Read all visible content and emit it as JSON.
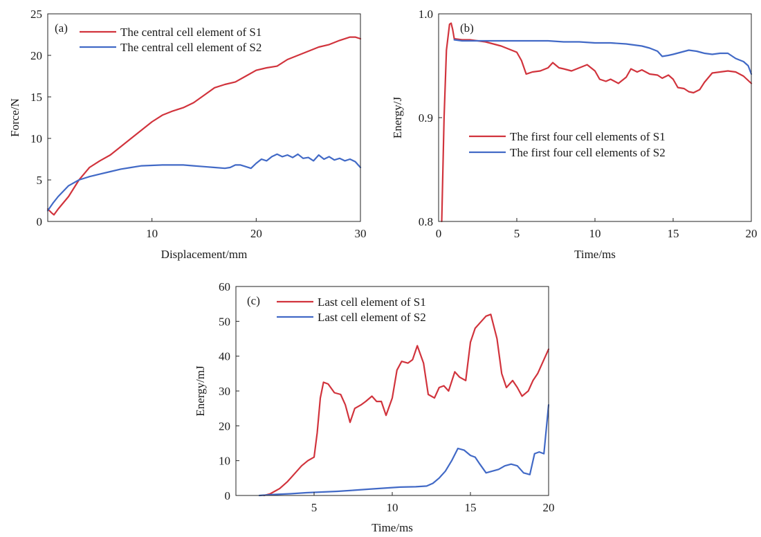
{
  "colors": {
    "s1": "#d1333c",
    "s2": "#4169c6"
  },
  "chart_data": [
    {
      "panel": "(a)",
      "type": "line",
      "xlabel": "Displacement/mm",
      "ylabel": "Force/N",
      "xlim": [
        0,
        30
      ],
      "ylim": [
        0,
        25
      ],
      "xticks": [
        10,
        20,
        30
      ],
      "yticks": [
        0,
        5,
        10,
        15,
        20,
        25
      ],
      "legend_position": "top-left",
      "series": [
        {
          "name": "The central cell element of S1",
          "color": "#d1333c",
          "x": [
            0,
            0.4,
            0.6,
            1,
            2,
            3,
            4,
            5,
            6,
            7,
            8,
            9,
            10,
            11,
            12,
            13,
            14,
            15,
            16,
            17,
            18,
            19,
            20,
            21,
            22,
            23,
            24,
            25,
            26,
            27,
            28,
            29,
            29.5,
            30
          ],
          "y": [
            1.5,
            1.0,
            0.8,
            1.5,
            3.0,
            5.0,
            6.5,
            7.3,
            8.0,
            9.0,
            10.0,
            11.0,
            12.0,
            12.8,
            13.3,
            13.7,
            14.3,
            15.2,
            16.1,
            16.5,
            16.8,
            17.5,
            18.2,
            18.5,
            18.7,
            19.5,
            20.0,
            20.5,
            21.0,
            21.3,
            21.8,
            22.2,
            22.2,
            22.0
          ]
        },
        {
          "name": "The central cell element of S2",
          "color": "#4169c6",
          "x": [
            0,
            0.5,
            1,
            2,
            3,
            4,
            5,
            6,
            7,
            8,
            9,
            10,
            11,
            12,
            13,
            14,
            15,
            16,
            17,
            17.5,
            18,
            18.5,
            19,
            19.5,
            20,
            20.5,
            21,
            21.5,
            22,
            22.5,
            23,
            23.5,
            24,
            24.5,
            25,
            25.5,
            26,
            26.5,
            27,
            27.5,
            28,
            28.5,
            29,
            29.5,
            30
          ],
          "y": [
            1.3,
            2.2,
            3.0,
            4.3,
            5.0,
            5.4,
            5.7,
            6.0,
            6.3,
            6.5,
            6.7,
            6.75,
            6.8,
            6.8,
            6.8,
            6.7,
            6.6,
            6.5,
            6.4,
            6.5,
            6.8,
            6.8,
            6.6,
            6.4,
            7.0,
            7.5,
            7.3,
            7.8,
            8.1,
            7.8,
            8.0,
            7.7,
            8.1,
            7.6,
            7.7,
            7.3,
            8.0,
            7.5,
            7.8,
            7.4,
            7.6,
            7.3,
            7.5,
            7.2,
            6.5
          ]
        }
      ]
    },
    {
      "panel": "(b)",
      "type": "line",
      "xlabel": "Time/ms",
      "ylabel": "Energy/J",
      "xlim": [
        0,
        20
      ],
      "ylim": [
        0.8,
        1.0
      ],
      "xticks": [
        0,
        5,
        10,
        15,
        20
      ],
      "yticks": [
        0.8,
        0.9,
        1.0
      ],
      "legend_position": "center-left",
      "series": [
        {
          "name": "The first four cell elements of S1",
          "color": "#d1333c",
          "x": [
            0.2,
            0.35,
            0.5,
            0.7,
            0.8,
            0.9,
            1.0,
            1.5,
            2,
            2.5,
            3,
            3.5,
            4,
            4.5,
            5,
            5.3,
            5.6,
            6,
            6.5,
            7,
            7.3,
            7.7,
            8,
            8.5,
            9,
            9.5,
            10,
            10.3,
            10.7,
            11,
            11.5,
            12,
            12.3,
            12.7,
            13,
            13.5,
            14,
            14.3,
            14.7,
            15,
            15.3,
            15.7,
            16,
            16.3,
            16.7,
            17,
            17.5,
            18,
            18.5,
            19,
            19.5,
            20
          ],
          "y": [
            0.8,
            0.9,
            0.965,
            0.99,
            0.991,
            0.985,
            0.976,
            0.975,
            0.975,
            0.974,
            0.973,
            0.971,
            0.969,
            0.966,
            0.963,
            0.955,
            0.942,
            0.944,
            0.945,
            0.948,
            0.953,
            0.948,
            0.947,
            0.945,
            0.948,
            0.951,
            0.945,
            0.937,
            0.935,
            0.937,
            0.933,
            0.939,
            0.947,
            0.944,
            0.946,
            0.942,
            0.941,
            0.938,
            0.941,
            0.937,
            0.929,
            0.928,
            0.925,
            0.924,
            0.927,
            0.934,
            0.943,
            0.944,
            0.945,
            0.944,
            0.94,
            0.933
          ]
        },
        {
          "name": "The first four cell elements of S2",
          "color": "#4169c6",
          "x": [
            1.0,
            1.5,
            2,
            3,
            4,
            5,
            6,
            7,
            8,
            9,
            10,
            11,
            12,
            12.5,
            13,
            13.5,
            14,
            14.3,
            14.7,
            15,
            15.5,
            16,
            16.5,
            17,
            17.5,
            18,
            18.5,
            19,
            19.5,
            19.8,
            20
          ],
          "y": [
            0.975,
            0.974,
            0.974,
            0.974,
            0.974,
            0.974,
            0.974,
            0.974,
            0.973,
            0.973,
            0.972,
            0.972,
            0.971,
            0.97,
            0.969,
            0.967,
            0.964,
            0.959,
            0.96,
            0.961,
            0.963,
            0.965,
            0.964,
            0.962,
            0.961,
            0.962,
            0.962,
            0.957,
            0.954,
            0.95,
            0.942
          ]
        }
      ]
    },
    {
      "panel": "(c)",
      "type": "line",
      "xlabel": "Time/ms",
      "ylabel": "Energy/mJ",
      "xlim": [
        0,
        20
      ],
      "ylim": [
        0,
        60
      ],
      "xticks": [
        5,
        10,
        15,
        20
      ],
      "yticks": [
        0,
        10,
        20,
        30,
        40,
        50,
        60
      ],
      "legend_position": "top-left",
      "series": [
        {
          "name": "Last cell element of S1",
          "color": "#d1333c",
          "x": [
            1.8,
            2.2,
            2.8,
            3.3,
            3.8,
            4.2,
            4.6,
            5.0,
            5.2,
            5.4,
            5.6,
            5.9,
            6.3,
            6.7,
            7.0,
            7.3,
            7.6,
            8.0,
            8.3,
            8.7,
            9.0,
            9.3,
            9.6,
            10.0,
            10.3,
            10.6,
            11.0,
            11.3,
            11.6,
            12.0,
            12.3,
            12.7,
            13.0,
            13.3,
            13.6,
            14.0,
            14.3,
            14.7,
            15.0,
            15.3,
            15.7,
            16.0,
            16.3,
            16.7,
            17.0,
            17.3,
            17.7,
            18.0,
            18.3,
            18.7,
            19.0,
            19.3,
            19.7,
            20.0
          ],
          "y": [
            0,
            0.5,
            2,
            4,
            6.5,
            8.5,
            10,
            11,
            18,
            28,
            32.5,
            32,
            29.5,
            29,
            26,
            21,
            25,
            26,
            27,
            28.5,
            27,
            27,
            23,
            28,
            36,
            38.5,
            38,
            39,
            43,
            38,
            29,
            28,
            31,
            31.5,
            30,
            35.5,
            34,
            33,
            44,
            48,
            50,
            51.5,
            52,
            45,
            35,
            31,
            33,
            31,
            28.5,
            30,
            33,
            35,
            39,
            42
          ]
        },
        {
          "name": "Last cell element of S2",
          "color": "#4169c6",
          "x": [
            1.5,
            2.5,
            3.5,
            4.5,
            5.5,
            6.5,
            7.5,
            8.5,
            9.5,
            10.5,
            11.5,
            12.2,
            12.6,
            13.0,
            13.4,
            13.8,
            14.2,
            14.6,
            15.0,
            15.3,
            15.6,
            16.0,
            16.4,
            16.8,
            17.2,
            17.6,
            18.0,
            18.4,
            18.8,
            19.1,
            19.4,
            19.7,
            20.0
          ],
          "y": [
            0,
            0.3,
            0.5,
            0.8,
            1.0,
            1.2,
            1.5,
            1.8,
            2.1,
            2.4,
            2.5,
            2.7,
            3.5,
            5.0,
            7.0,
            10.0,
            13.5,
            13.0,
            11.5,
            11.0,
            9.0,
            6.5,
            7.0,
            7.5,
            8.5,
            9.0,
            8.5,
            6.5,
            6.0,
            12.0,
            12.5,
            12.0,
            26.0
          ]
        }
      ]
    }
  ]
}
